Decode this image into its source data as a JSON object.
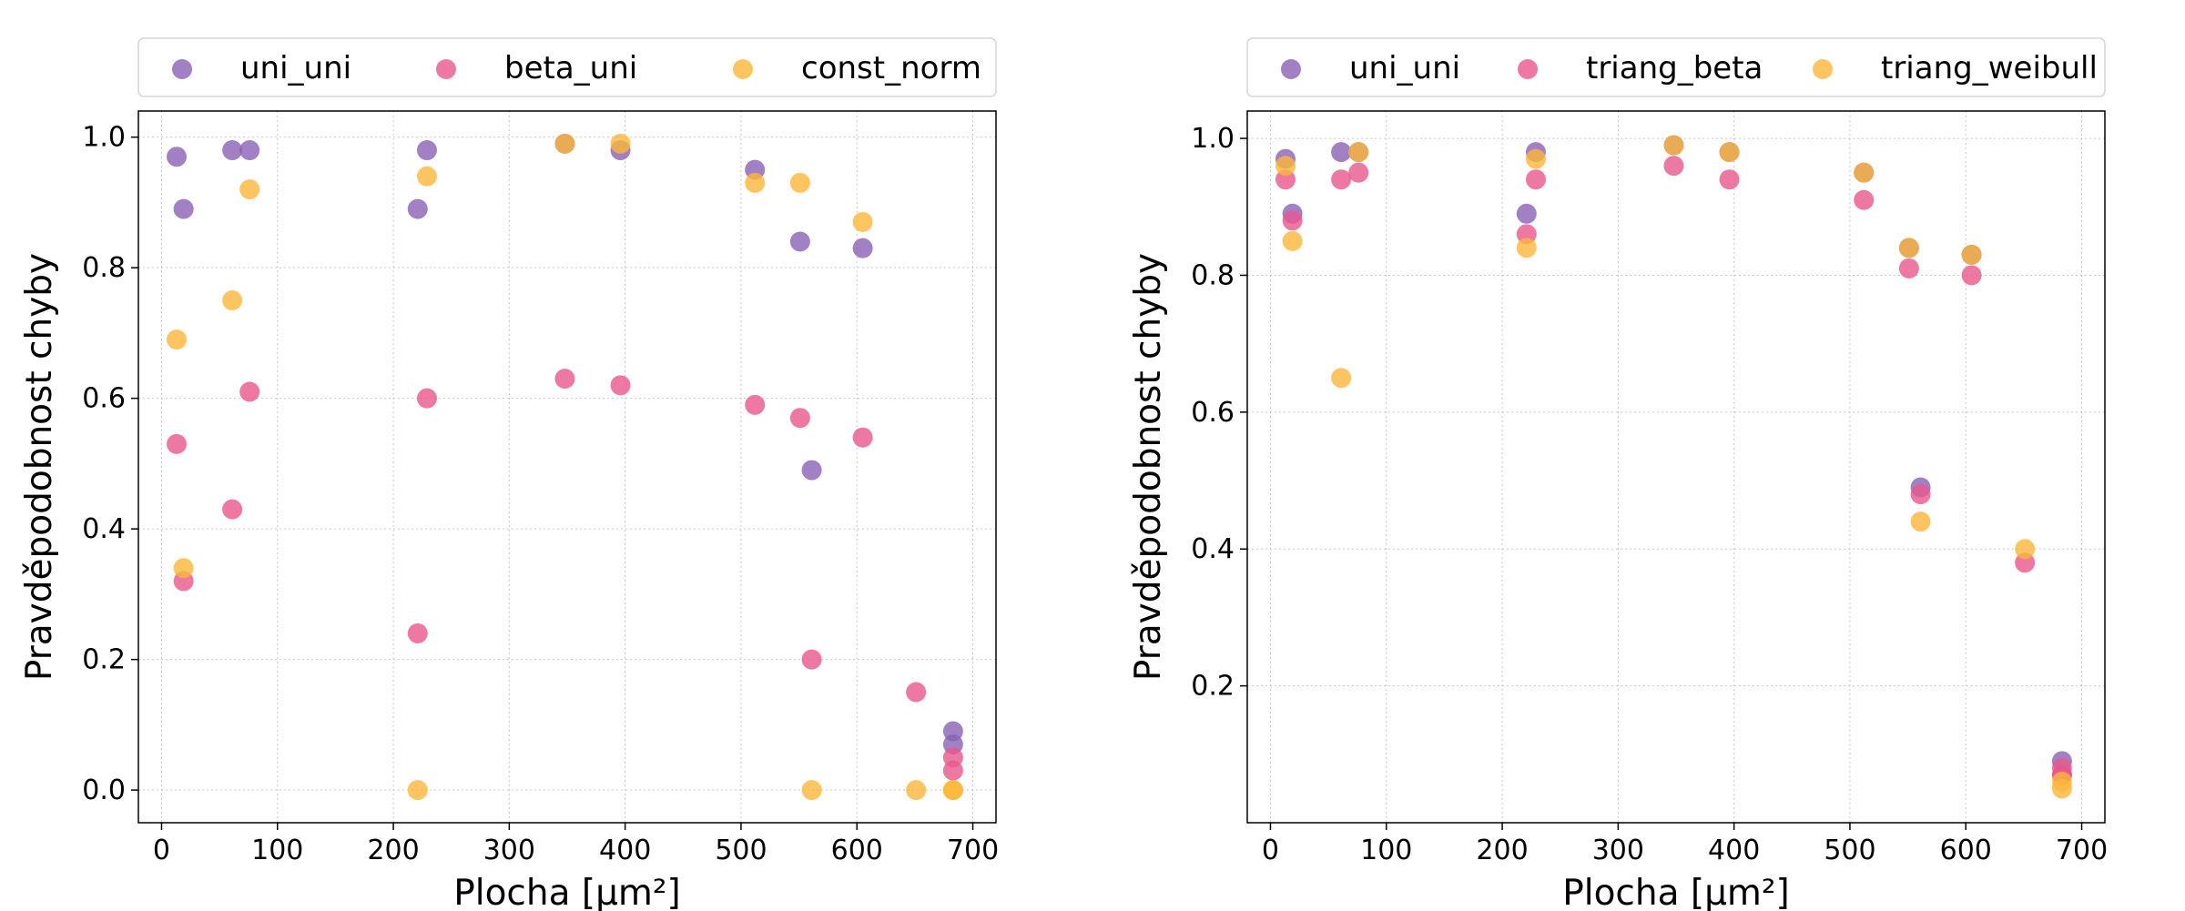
{
  "chart_data": [
    {
      "type": "scatter",
      "xlabel": "Plocha [µm²]",
      "ylabel": "Pravděpodobnost chyby",
      "xlim": [
        -20,
        720
      ],
      "ylim": [
        -0.05,
        1.04
      ],
      "xticks": [
        0,
        100,
        200,
        300,
        400,
        500,
        600,
        700
      ],
      "yticks": [
        0.0,
        0.2,
        0.4,
        0.6,
        0.8,
        1.0
      ],
      "ytick_labels": [
        "0.0",
        "0.2",
        "0.4",
        "0.6",
        "0.8",
        "1.0"
      ],
      "grid": true,
      "legend_position": "top",
      "series": [
        {
          "name": "uni_uni",
          "color": "#8a62b5",
          "points": [
            [
              13,
              0.97
            ],
            [
              19,
              0.89
            ],
            [
              61,
              0.98
            ],
            [
              76,
              0.98
            ],
            [
              221,
              0.89
            ],
            [
              229,
              0.98
            ],
            [
              348,
              0.99
            ],
            [
              396,
              0.98
            ],
            [
              512,
              0.95
            ],
            [
              551,
              0.84
            ],
            [
              561,
              0.49
            ],
            [
              605,
              0.83
            ],
            [
              683,
              0.09
            ],
            [
              683,
              0.07
            ]
          ]
        },
        {
          "name": "beta_uni",
          "color": "#e8578c",
          "points": [
            [
              13,
              0.53
            ],
            [
              19,
              0.32
            ],
            [
              61,
              0.43
            ],
            [
              76,
              0.61
            ],
            [
              221,
              0.24
            ],
            [
              229,
              0.6
            ],
            [
              348,
              0.63
            ],
            [
              396,
              0.62
            ],
            [
              512,
              0.59
            ],
            [
              551,
              0.57
            ],
            [
              561,
              0.2
            ],
            [
              605,
              0.54
            ],
            [
              651,
              0.15
            ],
            [
              683,
              0.05
            ],
            [
              683,
              0.03
            ]
          ]
        },
        {
          "name": "const_norm",
          "color": "#fbb63a",
          "points": [
            [
              13,
              0.69
            ],
            [
              19,
              0.34
            ],
            [
              61,
              0.75
            ],
            [
              76,
              0.92
            ],
            [
              221,
              0.0
            ],
            [
              229,
              0.94
            ],
            [
              348,
              0.99
            ],
            [
              396,
              0.99
            ],
            [
              512,
              0.93
            ],
            [
              551,
              0.93
            ],
            [
              561,
              0.0
            ],
            [
              605,
              0.87
            ],
            [
              651,
              0.0
            ],
            [
              683,
              0.0
            ],
            [
              683,
              0.0
            ]
          ]
        }
      ]
    },
    {
      "type": "scatter",
      "xlabel": "Plocha [µm²]",
      "ylabel": "Pravděpodobnost chyby",
      "xlim": [
        -20,
        720
      ],
      "ylim": [
        0.0,
        1.04
      ],
      "xticks": [
        0,
        100,
        200,
        300,
        400,
        500,
        600,
        700
      ],
      "yticks": [
        0.2,
        0.4,
        0.6,
        0.8,
        1.0
      ],
      "ytick_labels": [
        "0.2",
        "0.4",
        "0.6",
        "0.8",
        "1.0"
      ],
      "grid": true,
      "legend_position": "top",
      "series": [
        {
          "name": "uni_uni",
          "color": "#8a62b5",
          "points": [
            [
              13,
              0.97
            ],
            [
              19,
              0.89
            ],
            [
              61,
              0.98
            ],
            [
              76,
              0.98
            ],
            [
              221,
              0.89
            ],
            [
              229,
              0.98
            ],
            [
              348,
              0.99
            ],
            [
              396,
              0.98
            ],
            [
              512,
              0.95
            ],
            [
              551,
              0.84
            ],
            [
              561,
              0.49
            ],
            [
              605,
              0.83
            ],
            [
              683,
              0.09
            ],
            [
              683,
              0.07
            ]
          ]
        },
        {
          "name": "triang_beta",
          "color": "#e8578c",
          "points": [
            [
              13,
              0.94
            ],
            [
              19,
              0.88
            ],
            [
              61,
              0.94
            ],
            [
              76,
              0.95
            ],
            [
              221,
              0.86
            ],
            [
              229,
              0.94
            ],
            [
              348,
              0.96
            ],
            [
              396,
              0.94
            ],
            [
              512,
              0.91
            ],
            [
              551,
              0.81
            ],
            [
              561,
              0.48
            ],
            [
              605,
              0.8
            ],
            [
              651,
              0.38
            ],
            [
              683,
              0.08
            ],
            [
              683,
              0.07
            ]
          ]
        },
        {
          "name": "triang_weibull",
          "color": "#fbb63a",
          "points": [
            [
              13,
              0.96
            ],
            [
              19,
              0.85
            ],
            [
              61,
              0.65
            ],
            [
              76,
              0.98
            ],
            [
              221,
              0.84
            ],
            [
              229,
              0.97
            ],
            [
              348,
              0.99
            ],
            [
              396,
              0.98
            ],
            [
              512,
              0.95
            ],
            [
              551,
              0.84
            ],
            [
              561,
              0.44
            ],
            [
              605,
              0.83
            ],
            [
              651,
              0.4
            ],
            [
              683,
              0.06
            ],
            [
              683,
              0.05
            ]
          ]
        }
      ]
    }
  ]
}
